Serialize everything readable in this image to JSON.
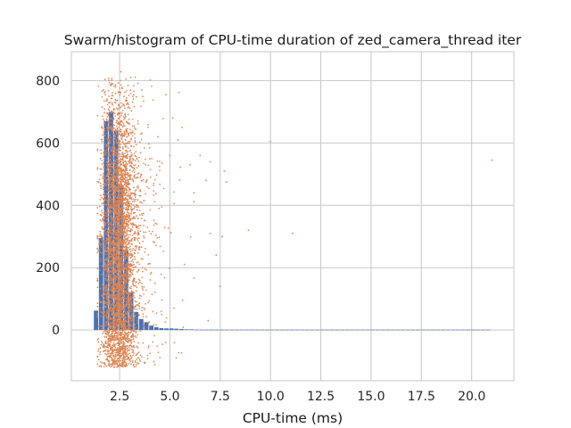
{
  "chart_data": {
    "type": "bar",
    "title": "Swarm/histogram of CPU-time duration of zed_camera_thread iter",
    "xlabel": "CPU-time (ms)",
    "ylabel": "",
    "xlim": [
      0.1,
      22.1
    ],
    "ylim": [
      -163,
      893
    ],
    "xticks": [
      2.5,
      5.0,
      7.5,
      10.0,
      12.5,
      15.0,
      17.5,
      20.0
    ],
    "xtick_labels": [
      "2.5",
      "5.0",
      "7.5",
      "10.0",
      "12.5",
      "15.0",
      "17.5",
      "20.0"
    ],
    "yticks": [
      0,
      200,
      400,
      600,
      800
    ],
    "ytick_labels": [
      "0",
      "200",
      "400",
      "600",
      "800"
    ],
    "grid": true,
    "histogram": {
      "color": "#4c72b0",
      "bin_width": 0.25,
      "bins_start": [
        1.2,
        1.45,
        1.7,
        1.95,
        2.2,
        2.45,
        2.7,
        2.95,
        3.2,
        3.45,
        3.7,
        3.95,
        4.2,
        4.45,
        4.7,
        4.95,
        5.2,
        5.45,
        5.7,
        5.95,
        6.2,
        6.45,
        6.7,
        6.95,
        7.2,
        7.45,
        7.7,
        7.95,
        8.2,
        8.45,
        8.7,
        8.95,
        9.2,
        9.45,
        9.7,
        9.95,
        10.2,
        10.45,
        10.7,
        10.95,
        11.2,
        11.45,
        11.7,
        11.95,
        12.2,
        12.45,
        12.7,
        12.95,
        13.2,
        13.45,
        13.7,
        13.95,
        14.2,
        14.45,
        14.7,
        14.95,
        15.2,
        15.45,
        15.7,
        15.95,
        16.2,
        16.45,
        16.7,
        16.95,
        17.2,
        17.45,
        17.7,
        17.95,
        18.2,
        18.45,
        18.7,
        18.95,
        19.2,
        19.45,
        19.7,
        19.95,
        20.2,
        20.45,
        20.7
      ],
      "counts": [
        62,
        295,
        670,
        700,
        640,
        465,
        255,
        120,
        58,
        35,
        25,
        14,
        9,
        6,
        5,
        5,
        4,
        3,
        2,
        2,
        1,
        1,
        1,
        1,
        1,
        1,
        1,
        1,
        1,
        1,
        1,
        1,
        1,
        1,
        1,
        1,
        1,
        1,
        1,
        1,
        1,
        1,
        1,
        1,
        1,
        1,
        1,
        1,
        1,
        1,
        1,
        1,
        1,
        1,
        1,
        1,
        1,
        1,
        1,
        1,
        1,
        1,
        1,
        1,
        1,
        1,
        1,
        1,
        1,
        1,
        1,
        1,
        1,
        1,
        1,
        1,
        1,
        1,
        1
      ]
    },
    "swarm": {
      "color": "#dd8452",
      "point_count": 4200,
      "bulk_x_center": 2.45,
      "bulk_x_spread": 0.45,
      "y_range": [
        -120,
        845
      ],
      "outliers": [
        {
          "x": 4.8,
          "y": 755
        },
        {
          "x": 5.6,
          "y": 650
        },
        {
          "x": 4.4,
          "y": 620
        },
        {
          "x": 5.0,
          "y": 560
        },
        {
          "x": 5.4,
          "y": 610
        },
        {
          "x": 6.0,
          "y": 530
        },
        {
          "x": 6.5,
          "y": 560
        },
        {
          "x": 7.0,
          "y": 540
        },
        {
          "x": 7.7,
          "y": 510
        },
        {
          "x": 7.8,
          "y": 475
        },
        {
          "x": 6.8,
          "y": 480
        },
        {
          "x": 6.2,
          "y": 440
        },
        {
          "x": 7.0,
          "y": 310
        },
        {
          "x": 7.3,
          "y": 240
        },
        {
          "x": 7.6,
          "y": 300
        },
        {
          "x": 8.9,
          "y": 320
        },
        {
          "x": 10.0,
          "y": 605
        },
        {
          "x": 11.1,
          "y": 310
        },
        {
          "x": 7.5,
          "y": 140
        },
        {
          "x": 6.9,
          "y": 30
        },
        {
          "x": 21.0,
          "y": 545
        }
      ]
    }
  }
}
